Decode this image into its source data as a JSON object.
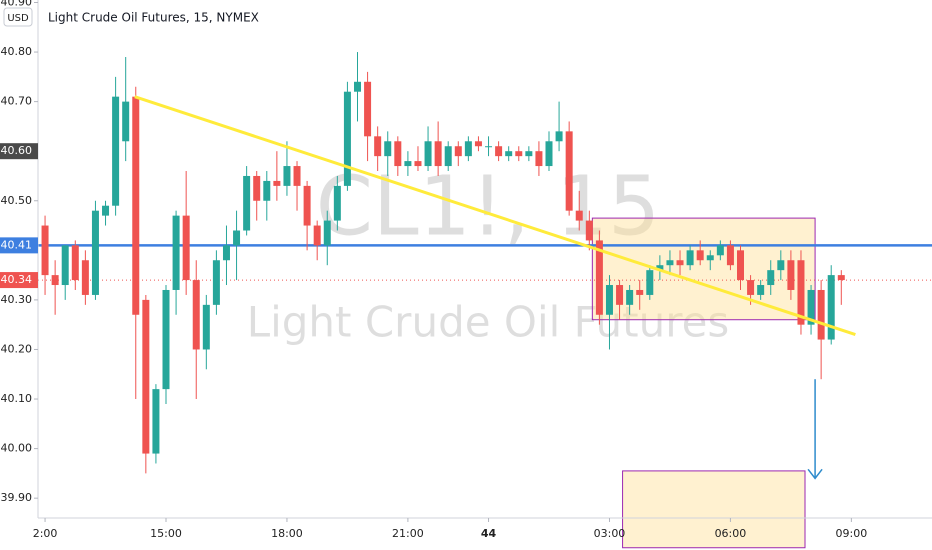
{
  "chart_data": {
    "type": "candlestick",
    "title": "Light Crude Oil Futures, 15, NYMEX",
    "currency": "USD",
    "watermark": "CL1!, 15",
    "watermark_subtitle": "Light Crude Oil Futures",
    "up_color": "#26a69a",
    "down_color": "#ef5350",
    "x": [
      0,
      1,
      2,
      3,
      4,
      5,
      6,
      7,
      8,
      9,
      10,
      11,
      12,
      13,
      14,
      15,
      16,
      17,
      18,
      19,
      20,
      21,
      22,
      23,
      24,
      25,
      26,
      27,
      28,
      29,
      30,
      31,
      32,
      33,
      34,
      35,
      36,
      37,
      38,
      39,
      40,
      41,
      42,
      43,
      44,
      45,
      46,
      47,
      48,
      49,
      50,
      51,
      52,
      53,
      54,
      55,
      56,
      57,
      58,
      59,
      60,
      61,
      62,
      63,
      64,
      65,
      66,
      67,
      68,
      69,
      70,
      71,
      72,
      73,
      74,
      75,
      76,
      77,
      78,
      79
    ],
    "open": [
      40.45,
      40.35,
      40.33,
      40.41,
      40.38,
      40.31,
      40.47,
      40.49,
      40.62,
      40.71,
      40.3,
      39.99,
      40.12,
      40.32,
      40.47,
      40.34,
      40.2,
      40.29,
      40.38,
      40.41,
      40.44,
      40.55,
      40.5,
      40.54,
      40.53,
      40.57,
      40.53,
      40.45,
      40.41,
      40.46,
      40.53,
      40.72,
      40.74,
      40.63,
      40.59,
      40.62,
      40.57,
      40.58,
      40.57,
      40.62,
      40.57,
      40.61,
      40.59,
      40.62,
      40.61,
      40.61,
      40.59,
      40.6,
      40.59,
      40.6,
      40.57,
      40.62,
      40.64,
      40.48,
      40.46,
      40.42,
      40.27,
      40.33,
      40.29,
      40.32,
      40.31,
      40.36,
      40.37,
      40.38,
      40.37,
      40.4,
      40.38,
      40.39,
      40.41,
      40.4,
      40.34,
      40.31,
      40.33,
      40.36,
      40.38,
      40.38,
      40.25,
      40.32,
      40.22,
      40.35
    ],
    "high": [
      40.47,
      40.38,
      40.41,
      40.42,
      40.4,
      40.5,
      40.5,
      40.75,
      40.79,
      40.73,
      40.31,
      40.13,
      40.33,
      40.48,
      40.56,
      40.38,
      40.31,
      40.4,
      40.45,
      40.48,
      40.57,
      40.56,
      40.56,
      40.6,
      40.62,
      40.58,
      40.54,
      40.46,
      40.48,
      40.55,
      40.74,
      40.8,
      40.76,
      40.65,
      40.64,
      40.63,
      40.6,
      40.61,
      40.65,
      40.66,
      40.62,
      40.62,
      40.63,
      40.63,
      40.63,
      40.62,
      40.61,
      40.61,
      40.61,
      40.62,
      40.64,
      40.7,
      40.66,
      40.52,
      40.48,
      40.44,
      40.35,
      40.34,
      40.33,
      40.34,
      40.37,
      40.39,
      40.4,
      40.4,
      40.41,
      40.42,
      40.4,
      40.42,
      40.42,
      40.41,
      40.35,
      40.34,
      40.38,
      40.4,
      40.4,
      40.4,
      40.33,
      40.34,
      40.37,
      40.36
    ],
    "low": [
      40.31,
      40.27,
      40.3,
      40.32,
      40.29,
      40.3,
      40.45,
      40.47,
      40.58,
      40.1,
      39.95,
      39.97,
      40.09,
      40.27,
      40.31,
      40.1,
      40.16,
      40.27,
      40.33,
      40.34,
      40.43,
      40.46,
      40.46,
      40.5,
      40.51,
      40.48,
      40.4,
      40.38,
      40.37,
      40.44,
      40.52,
      40.66,
      40.58,
      40.56,
      40.55,
      40.55,
      40.55,
      40.56,
      40.56,
      40.55,
      40.56,
      40.57,
      40.58,
      40.6,
      40.59,
      40.58,
      40.58,
      40.58,
      40.58,
      40.55,
      40.56,
      40.6,
      40.47,
      40.44,
      40.4,
      40.25,
      40.2,
      40.26,
      40.27,
      40.28,
      40.3,
      40.34,
      40.35,
      40.35,
      40.36,
      40.37,
      40.36,
      40.38,
      40.36,
      40.32,
      40.29,
      40.3,
      40.31,
      40.34,
      40.3,
      40.23,
      40.23,
      40.14,
      40.21,
      40.29
    ],
    "close": [
      40.35,
      40.33,
      40.41,
      40.34,
      40.31,
      40.48,
      40.49,
      40.71,
      40.7,
      40.27,
      39.99,
      40.12,
      40.32,
      40.47,
      40.34,
      40.2,
      40.29,
      40.38,
      40.41,
      40.44,
      40.55,
      40.5,
      40.54,
      40.53,
      40.57,
      40.53,
      40.45,
      40.41,
      40.46,
      40.53,
      40.72,
      40.74,
      40.63,
      40.59,
      40.62,
      40.57,
      40.58,
      40.57,
      40.62,
      40.57,
      40.61,
      40.59,
      40.62,
      40.61,
      40.61,
      40.59,
      40.6,
      40.59,
      40.6,
      40.57,
      40.62,
      40.64,
      40.48,
      40.46,
      40.42,
      40.27,
      40.33,
      40.29,
      40.32,
      40.31,
      40.36,
      40.37,
      40.38,
      40.37,
      40.4,
      40.38,
      40.39,
      40.41,
      40.37,
      40.34,
      40.31,
      40.33,
      40.36,
      40.38,
      40.32,
      40.25,
      40.32,
      40.22,
      40.35,
      40.34
    ],
    "xlim": [
      -0.7,
      88
    ],
    "xticks": [
      {
        "value": 0,
        "label": "2:00"
      },
      {
        "value": 12,
        "label": "15:00"
      },
      {
        "value": 24,
        "label": "18:00"
      },
      {
        "value": 36,
        "label": "21:00"
      },
      44,
      {
        "value": 56,
        "label": "03:00"
      },
      {
        "value": 68,
        "label": "06:00"
      },
      {
        "value": 80,
        "label": "09:00"
      }
    ],
    "ylim": [
      39.86,
      40.905
    ],
    "yticks": [
      {
        "value": 39.9,
        "label": "39.90"
      },
      {
        "value": 40.0,
        "label": "40.00"
      },
      {
        "value": 40.1,
        "label": "40.10"
      },
      {
        "value": 40.2,
        "label": "40.20"
      },
      {
        "value": 40.3,
        "label": "40.30"
      },
      {
        "value": 40.5,
        "label": "40.50"
      },
      {
        "value": 40.7,
        "label": "40.70"
      },
      {
        "value": 40.8,
        "label": "40.80"
      },
      {
        "value": 40.9,
        "label": "40.90"
      }
    ],
    "price_markers": [
      {
        "value": 40.6,
        "label": "40.60",
        "color": "#4a4a4a"
      },
      {
        "value": 40.41,
        "color": "#3d7fe0"
      },
      {
        "value": 40.34,
        "color": "#ef5350"
      }
    ],
    "hlines": [
      {
        "value": 40.41,
        "color": "#3d7fe0",
        "style": "solid"
      },
      {
        "value": 40.34,
        "color": "#ef5350",
        "style": "dotted"
      }
    ],
    "trend_line": {
      "x": [
        8.9,
        80.4
      ],
      "y": [
        40.71,
        40.23
      ],
      "color": "#ffeb3b"
    },
    "rectangles": [
      {
        "x": [
          54.3,
          76.4
        ],
        "y": [
          40.26,
          40.465
        ]
      },
      {
        "x": [
          57.3,
          75.4
        ],
        "y": [
          39.8,
          39.955
        ]
      }
    ],
    "arrow": {
      "x": 76.4,
      "y": [
        40.14,
        39.94
      ],
      "color": "#2e8bcc"
    }
  }
}
